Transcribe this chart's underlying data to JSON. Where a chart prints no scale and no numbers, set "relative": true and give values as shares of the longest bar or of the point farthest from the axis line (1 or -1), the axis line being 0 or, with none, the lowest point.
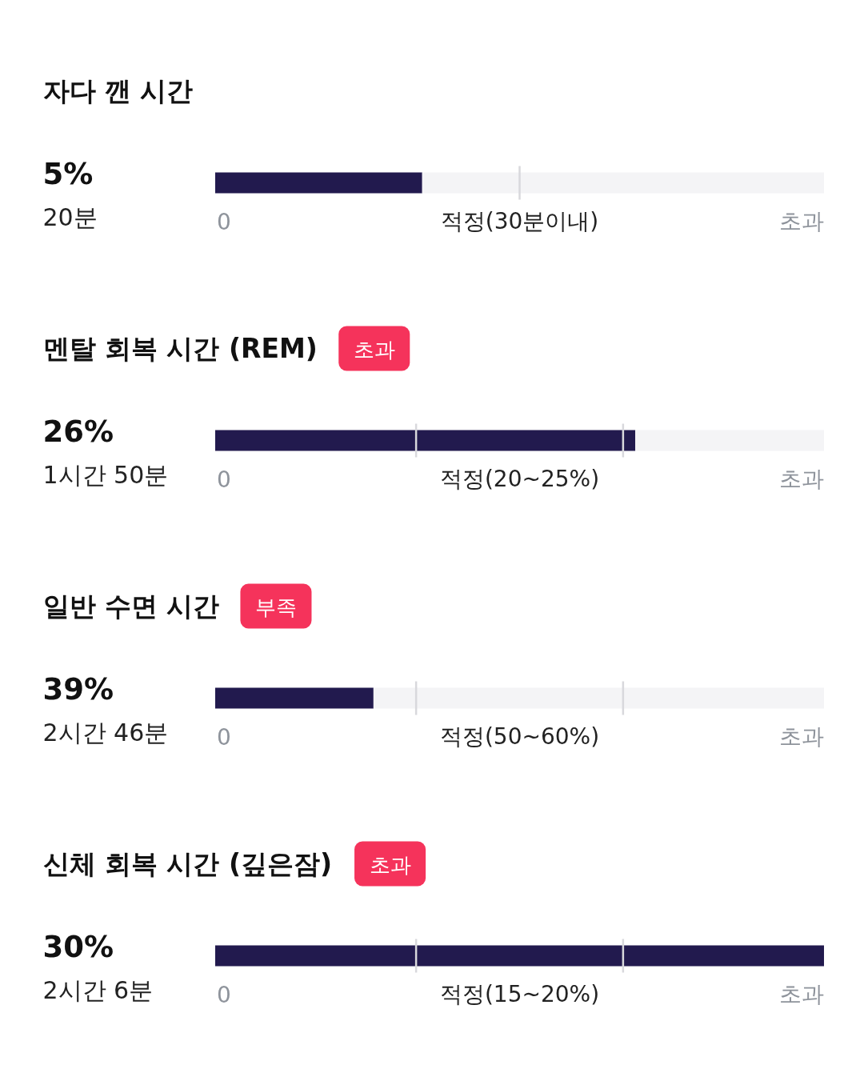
{
  "chart_data": [
    {
      "type": "bar",
      "orientation": "horizontal",
      "stacked": true,
      "relative": true,
      "title": "자다 깬 시간",
      "categories": [
        null
      ],
      "series": [
        {
          "color": "#221a4e",
          "values": [
            0.34
          ]
        },
        {
          "color": "#f4f4f6",
          "values": [
            0.66
          ]
        }
      ],
      "ref_lines": [
        {
          "axis": "x",
          "value": 0.5,
          "label": "적정(30분이내)",
          "color": "#d8d8dc"
        }
      ],
      "annotations": [
        "5%",
        "20분",
        "0",
        "초과"
      ]
    },
    {
      "type": "bar",
      "orientation": "horizontal",
      "stacked": true,
      "relative": true,
      "title": "멘탈 회복 시간 (REM)",
      "subtitle": "초과",
      "categories": [
        null
      ],
      "series": [
        {
          "color": "#221a4e",
          "values": [
            0.69
          ]
        },
        {
          "color": "#f4f4f6",
          "values": [
            0.31
          ]
        }
      ],
      "ref_lines": [
        {
          "axis": "x",
          "value": 0.33,
          "color": "#d8d8dc"
        },
        {
          "axis": "x",
          "value": 0.67,
          "color": "#d8d8dc"
        }
      ],
      "annotations": [
        "26%",
        "1시간 50분",
        "0",
        "적정(20~25%)",
        "초과"
      ]
    },
    {
      "type": "bar",
      "orientation": "horizontal",
      "stacked": true,
      "relative": true,
      "title": "일반 수면 시간",
      "subtitle": "부족",
      "categories": [
        null
      ],
      "series": [
        {
          "color": "#221a4e",
          "values": [
            0.26
          ]
        },
        {
          "color": "#f4f4f6",
          "values": [
            0.74
          ]
        }
      ],
      "ref_lines": [
        {
          "axis": "x",
          "value": 0.33,
          "color": "#d8d8dc"
        },
        {
          "axis": "x",
          "value": 0.67,
          "color": "#d8d8dc"
        }
      ],
      "annotations": [
        "39%",
        "2시간 46분",
        "0",
        "적정(50~60%)",
        "초과"
      ]
    },
    {
      "type": "bar",
      "orientation": "horizontal",
      "stacked": true,
      "relative": true,
      "title": "신체 회복 시간 (깊은잠)",
      "subtitle": "초과",
      "categories": [
        null
      ],
      "series": [
        {
          "color": "#221a4e",
          "values": [
            1
          ]
        }
      ],
      "ref_lines": [
        {
          "axis": "x",
          "value": 0.33,
          "color": "#d8d8dc"
        },
        {
          "axis": "x",
          "value": 0.67,
          "color": "#d8d8dc"
        }
      ],
      "annotations": [
        "30%",
        "2시간 6분",
        "0",
        "적정(15~20%)",
        "초과"
      ]
    }
  ]
}
